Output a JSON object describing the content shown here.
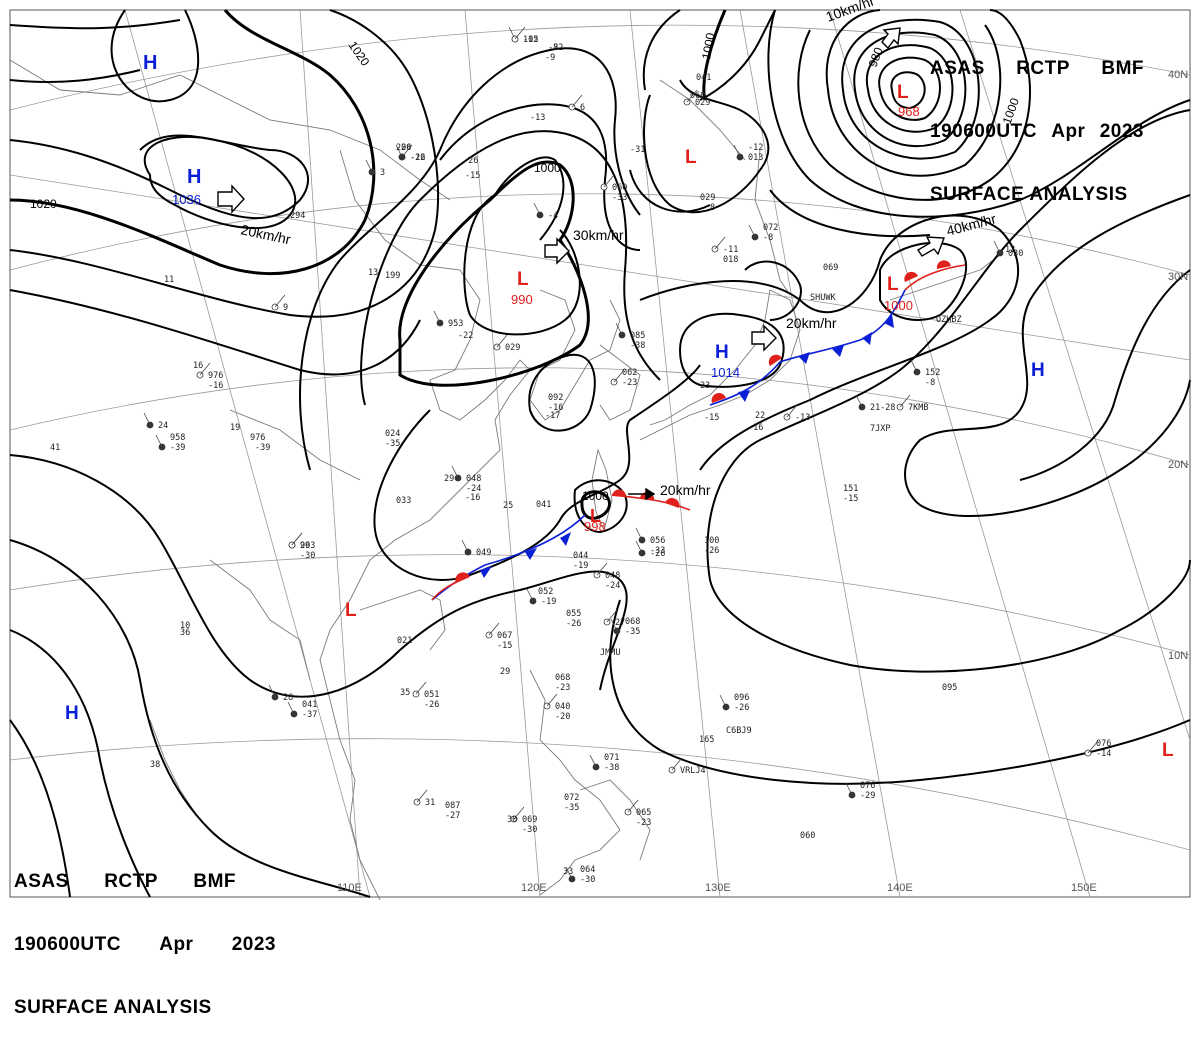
{
  "header": {
    "title_words": [
      "ASAS",
      "RCTP",
      "BMF"
    ],
    "time_words": [
      "190600UTC",
      "Apr",
      "2023"
    ],
    "product": "SURFACE ANALYSIS"
  },
  "longitude_labels": [
    "110E",
    "120E",
    "130E",
    "140E",
    "150E"
  ],
  "latitude_labels": [
    "40N",
    "30N",
    "20N",
    "10N"
  ],
  "isobar_labels": [
    "1020",
    "1020",
    "1000",
    "1000",
    "1000",
    "1000",
    "980",
    "10km/hr"
  ],
  "pressure_centers": [
    {
      "type": "H",
      "value": "",
      "color": "#0b1fd6"
    },
    {
      "type": "H",
      "value": "1036",
      "color": "#0b1fd6"
    },
    {
      "type": "L",
      "value": "990",
      "color": "#e0201b"
    },
    {
      "type": "L",
      "value": "",
      "color": "#e0201b"
    },
    {
      "type": "L",
      "value": "968",
      "color": "#e0201b"
    },
    {
      "type": "H",
      "value": "1014",
      "color": "#0b1fd6"
    },
    {
      "type": "L",
      "value": "1000",
      "color": "#e0201b"
    },
    {
      "type": "H",
      "value": "",
      "color": "#0b1fd6"
    },
    {
      "type": "L",
      "value": "998",
      "color": "#e0201b"
    },
    {
      "type": "L",
      "value": "",
      "color": "#e0201b"
    },
    {
      "type": "H",
      "value": "",
      "color": "#0b1fd6"
    },
    {
      "type": "L",
      "value": "",
      "color": "#e0201b"
    }
  ],
  "movement_labels": [
    "20km/hr",
    "30km/hr",
    "20km/hr",
    "40km/hr",
    "20km/hr"
  ],
  "station_samples": [
    "102",
    "-8",
    "206",
    "-26",
    "294",
    "199",
    "-4",
    "-26",
    "-15",
    "060",
    "-33",
    "072",
    "-8",
    "069",
    "SHUWK",
    "976",
    "-16",
    "958",
    "-39",
    "976",
    "-39",
    "029",
    "024",
    "-35",
    "048",
    "-24",
    "033",
    "993",
    "-30",
    "041",
    "049",
    "044",
    "-19",
    "048",
    "-24",
    "052",
    "-19",
    "055",
    "-26",
    "067",
    "-15",
    "068",
    "-35",
    "JMMU",
    "021",
    "051",
    "-26",
    "041",
    "-37",
    "087",
    "-27",
    "069",
    "-30",
    "064",
    "-30",
    "068",
    "-23",
    "040",
    "-20",
    "071",
    "-38",
    "072",
    "-35",
    "065",
    "-23",
    "096",
    "-26",
    "C6BJ9",
    "165",
    "VRLJ4",
    "095",
    "076",
    "-29",
    "060",
    "076",
    "-14",
    "151",
    "-15",
    "152",
    "-8",
    "7JXP",
    "7KMB",
    "100",
    "-26",
    "056",
    "-33",
    "-16",
    "-13",
    "092",
    "-16",
    "085",
    "-38",
    "062",
    "-23",
    "-28",
    "-22",
    "953",
    "041",
    "060",
    "-11",
    "018",
    "-12",
    "013",
    "029",
    "8",
    "6",
    "12",
    "13",
    "3",
    "41",
    "36",
    "26",
    "29",
    "25",
    "24",
    "19",
    "16",
    "9",
    "11",
    "10",
    "28",
    "38",
    "35",
    "31",
    "30",
    "33",
    "21",
    "22",
    "23",
    "27",
    "29",
    "OZHBZ",
    "030",
    "-13",
    "-9",
    "029",
    "-31",
    "-15",
    "-26",
    "-17",
    "-16",
    "-15",
    "-22",
    "-20",
    "-12"
  ],
  "colors": {
    "warm_front": "#e0201b",
    "cold_front": "#0b1fd6",
    "isobar": "#000000",
    "grid": "#9a9a9a",
    "coast": "#7a7a7a"
  }
}
